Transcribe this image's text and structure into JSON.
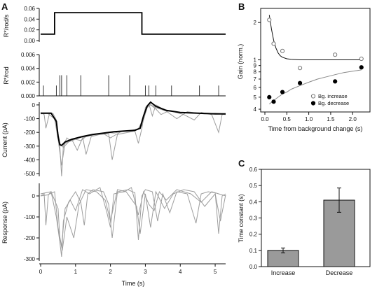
{
  "figure": {
    "panels": [
      "A",
      "B",
      "C"
    ]
  },
  "chart_data": [
    {
      "id": "A_stimulus",
      "type": "line",
      "ylabel": "R*/rod/s",
      "ylim": [
        0,
        0.06
      ],
      "yticks": [
        "0.06",
        "0.04",
        "0.02",
        "0.00"
      ],
      "xlim": [
        0,
        5.3
      ],
      "series": [
        {
          "x": [
            0,
            0.4,
            0.4,
            2.9,
            2.9,
            5.3
          ],
          "values": [
            0.012,
            0.012,
            0.052,
            0.052,
            0.012,
            0.012
          ]
        }
      ]
    },
    {
      "id": "A_photons",
      "type": "scatter",
      "ylabel": "R*/rod",
      "ylim": [
        0,
        0.006
      ],
      "yticks": [
        "0.006",
        "0.004",
        "0.002",
        "0.000"
      ],
      "xlim": [
        0,
        5.3
      ],
      "events": [
        {
          "x": 0.08,
          "y": 0.0015
        },
        {
          "x": 0.45,
          "y": 0.0015
        },
        {
          "x": 0.55,
          "y": 0.003
        },
        {
          "x": 0.6,
          "y": 0.003
        },
        {
          "x": 0.75,
          "y": 0.003
        },
        {
          "x": 1.15,
          "y": 0.003
        },
        {
          "x": 1.95,
          "y": 0.003
        },
        {
          "x": 2.55,
          "y": 0.003
        },
        {
          "x": 3.0,
          "y": 0.0015
        },
        {
          "x": 3.1,
          "y": 0.0015
        },
        {
          "x": 3.3,
          "y": 0.0015
        },
        {
          "x": 3.75,
          "y": 0.0015
        },
        {
          "x": 4.55,
          "y": 0.0015
        },
        {
          "x": 5.1,
          "y": 0.0015
        }
      ]
    },
    {
      "id": "A_current",
      "type": "line",
      "ylabel": "Current (pA)",
      "ylim": [
        -520,
        20
      ],
      "yticks": [
        "0",
        "-100",
        "-200",
        "-300",
        "-400",
        "-500"
      ],
      "ytick_values": [
        0,
        -100,
        -200,
        -300,
        -400,
        -500
      ],
      "xlim": [
        0,
        5.3
      ],
      "mean_trace": {
        "x": [
          0,
          0.3,
          0.45,
          0.5,
          0.55,
          0.6,
          0.7,
          0.9,
          1.2,
          1.5,
          1.8,
          2.1,
          2.4,
          2.7,
          2.85,
          2.95,
          3.05,
          3.15,
          3.3,
          3.6,
          4.0,
          4.5,
          5.0,
          5.3
        ],
        "values": [
          -60,
          -60,
          -120,
          -230,
          -290,
          -295,
          -270,
          -250,
          -230,
          -215,
          -205,
          -195,
          -190,
          -185,
          -170,
          -80,
          -10,
          20,
          -10,
          -40,
          -55,
          -60,
          -65,
          -65
        ]
      },
      "gray_traces": [
        {
          "x": [
            0,
            0.1,
            0.15,
            0.25,
            0.35,
            0.45,
            0.55,
            0.6,
            0.65,
            0.75,
            0.85,
            1.0,
            1.2,
            1.3,
            1.45,
            1.7,
            1.95,
            2.05,
            2.2,
            2.5,
            2.7,
            2.8,
            2.9,
            3.0,
            3.1,
            3.2,
            3.3,
            3.5,
            3.8,
            4.1,
            4.4,
            4.6,
            4.7,
            4.9,
            5.1,
            5.2,
            5.3
          ],
          "values": [
            -55,
            -70,
            -170,
            -65,
            -60,
            -110,
            -300,
            -520,
            -300,
            -240,
            -260,
            -250,
            -230,
            -360,
            -230,
            -215,
            -210,
            -400,
            -215,
            -200,
            -190,
            -280,
            -170,
            -20,
            10,
            -80,
            0,
            -30,
            -50,
            -70,
            -110,
            -55,
            -60,
            -70,
            -200,
            -70,
            -65
          ]
        },
        {
          "x": [
            0,
            0.3,
            0.45,
            0.55,
            0.65,
            0.8,
            1.0,
            1.15,
            1.3,
            1.6,
            1.9,
            2.1,
            2.4,
            2.7,
            2.9,
            3.05,
            3.15,
            3.3,
            3.45,
            3.7,
            4.0,
            4.4,
            4.7,
            5.0,
            5.3
          ],
          "values": [
            -65,
            -60,
            -130,
            -280,
            -310,
            -270,
            -250,
            -260,
            -230,
            -215,
            -200,
            -205,
            -190,
            -190,
            -150,
            -20,
            0,
            -30,
            -70,
            -40,
            -55,
            -60,
            -65,
            -60,
            -65
          ]
        },
        {
          "x": [
            0,
            0.2,
            0.4,
            0.5,
            0.6,
            0.7,
            0.9,
            1.05,
            1.2,
            1.5,
            1.8,
            2.0,
            2.3,
            2.6,
            2.8,
            2.95,
            3.1,
            3.3,
            3.6,
            3.9,
            4.2,
            4.5,
            4.8,
            5.1,
            5.3
          ],
          "values": [
            -60,
            -62,
            -100,
            -250,
            -440,
            -280,
            -255,
            -330,
            -240,
            -215,
            -210,
            -240,
            -195,
            -185,
            -175,
            -90,
            10,
            -20,
            -45,
            -100,
            -50,
            -60,
            -60,
            -65,
            -70
          ]
        }
      ]
    },
    {
      "id": "A_response",
      "type": "line",
      "ylabel": "Response (pA)",
      "xlabel": "Time (s)",
      "ylim": [
        -310,
        60
      ],
      "yticks": [
        "0",
        "-100",
        "-200",
        "-300"
      ],
      "ytick_values": [
        0,
        -100,
        -200,
        -300
      ],
      "xlim": [
        0,
        5.3
      ],
      "xticks": [
        "0",
        "1",
        "2",
        "3",
        "4",
        "5"
      ],
      "xtick_values": [
        0,
        1,
        2,
        3,
        4,
        5
      ],
      "gray_traces": [
        {
          "x": [
            0,
            0.1,
            0.15,
            0.22,
            0.3,
            0.45,
            0.55,
            0.6,
            0.65,
            0.8,
            1.0,
            1.15,
            1.25,
            1.35,
            1.5,
            1.8,
            1.95,
            2.05,
            2.2,
            2.5,
            2.7,
            2.8,
            2.9,
            3.0,
            3.2,
            3.35,
            3.5,
            3.7,
            3.9,
            4.2,
            4.45,
            4.6,
            4.8,
            5.0,
            5.1,
            5.2,
            5.3
          ],
          "values": [
            0,
            10,
            -140,
            5,
            20,
            -100,
            -220,
            -290,
            -120,
            -30,
            20,
            -30,
            -140,
            10,
            30,
            20,
            -40,
            -200,
            20,
            30,
            15,
            -210,
            0,
            30,
            20,
            -120,
            10,
            -80,
            20,
            10,
            -130,
            10,
            20,
            15,
            -180,
            0,
            10
          ]
        },
        {
          "x": [
            0,
            0.2,
            0.4,
            0.5,
            0.6,
            0.7,
            0.85,
            1.0,
            1.2,
            1.4,
            1.7,
            1.9,
            2.0,
            2.1,
            2.4,
            2.6,
            2.8,
            2.95,
            3.1,
            3.25,
            3.4,
            3.6,
            3.9,
            4.3,
            4.6,
            4.9,
            5.2,
            5.3
          ],
          "values": [
            0,
            5,
            20,
            -150,
            -240,
            -60,
            -20,
            -70,
            30,
            10,
            40,
            -80,
            -150,
            10,
            20,
            40,
            -90,
            20,
            -40,
            -70,
            20,
            -20,
            30,
            10,
            -30,
            20,
            5,
            0
          ]
        },
        {
          "x": [
            0,
            0.3,
            0.5,
            0.55,
            0.62,
            0.75,
            0.95,
            1.1,
            1.3,
            1.6,
            1.85,
            2.0,
            2.2,
            2.45,
            2.75,
            2.85,
            3.0,
            3.15,
            3.3,
            3.55,
            3.8,
            4.1,
            4.4,
            4.7,
            5.0,
            5.15,
            5.3
          ],
          "values": [
            10,
            20,
            -60,
            -200,
            -260,
            -100,
            -200,
            -40,
            30,
            20,
            -20,
            -120,
            30,
            20,
            -50,
            -180,
            10,
            -150,
            20,
            -60,
            10,
            30,
            20,
            -50,
            10,
            -120,
            5
          ]
        }
      ]
    },
    {
      "id": "B",
      "type": "scatter",
      "ylabel": "Gain (norm.)",
      "xlabel": "Time from background change (s)",
      "xlim": [
        0,
        2.3
      ],
      "xticks": [
        "0.0",
        "0.5",
        "1.0",
        "1.5",
        "2.0"
      ],
      "xtick_values": [
        0,
        0.5,
        1.0,
        1.5,
        2.0
      ],
      "ylog": true,
      "ylim": [
        0.38,
        2.6
      ],
      "yticks_upper": [
        "2",
        "1"
      ],
      "yticks_upper_values": [
        2,
        1
      ],
      "yticks_lower": [
        "9",
        "8",
        "7",
        "6",
        "5",
        "4"
      ],
      "yticks_lower_values": [
        0.9,
        0.8,
        0.7,
        0.6,
        0.5,
        0.4
      ],
      "legend": [
        "Bg. increase",
        "Bg. decrease"
      ],
      "legend_placement": "bottom-right",
      "series": [
        {
          "name": "Bg. increase",
          "marker": "open-circle",
          "x": [
            0.1,
            0.2,
            0.4,
            0.8,
            1.6,
            2.2
          ],
          "values": [
            2.1,
            1.35,
            1.18,
            0.86,
            1.1,
            1.02
          ],
          "fit_x": [
            0.1,
            0.15,
            0.2,
            0.25,
            0.3,
            0.35,
            0.4,
            0.5,
            0.6,
            0.8,
            1.0,
            1.5,
            2.0,
            2.2
          ],
          "fit_values": [
            2.3,
            1.77,
            1.44,
            1.25,
            1.14,
            1.08,
            1.05,
            1.02,
            1.01,
            1.0,
            1.0,
            1.0,
            1.0,
            1.0
          ]
        },
        {
          "name": "Bg. decrease",
          "marker": "filled-circle",
          "x": [
            0.1,
            0.2,
            0.4,
            0.8,
            1.6,
            2.2
          ],
          "values": [
            0.5,
            0.46,
            0.55,
            0.65,
            0.67,
            0.87
          ],
          "fit_x": [
            0.1,
            0.2,
            0.3,
            0.4,
            0.5,
            0.6,
            0.8,
            1.0,
            1.2,
            1.4,
            1.6,
            1.8,
            2.0,
            2.2
          ],
          "fit_values": [
            0.44,
            0.47,
            0.5,
            0.53,
            0.55,
            0.58,
            0.62,
            0.66,
            0.7,
            0.73,
            0.76,
            0.79,
            0.81,
            0.83
          ]
        }
      ]
    },
    {
      "id": "C",
      "type": "bar",
      "ylabel": "Time constant (s)",
      "categories": [
        "Increase",
        "Decrease"
      ],
      "values": [
        0.1,
        0.41
      ],
      "errors": [
        0.015,
        0.075
      ],
      "ylim": [
        0,
        0.6
      ],
      "yticks": [
        "0.0",
        "0.1",
        "0.2",
        "0.3",
        "0.4",
        "0.5",
        "0.6"
      ],
      "ytick_values": [
        0,
        0.1,
        0.2,
        0.3,
        0.4,
        0.5,
        0.6
      ],
      "bar_color": "#9a9a9a"
    }
  ],
  "colors": {
    "axis": "#111111",
    "trace_gray": "#9d9d9d",
    "trace_black": "#000000",
    "bar_fill": "#9a9a9a"
  }
}
